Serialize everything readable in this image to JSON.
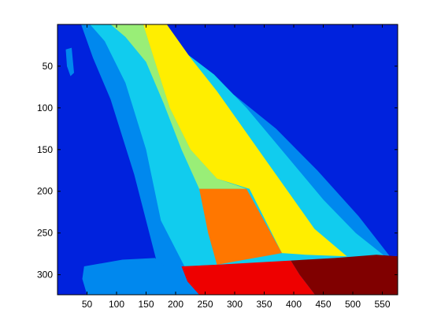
{
  "chart_data": {
    "type": "heatmap",
    "title": "",
    "xlabel": "",
    "ylabel": "",
    "xlim": [
      0,
      576
    ],
    "ylim": [
      0,
      324
    ],
    "y_reversed": true,
    "grid": false,
    "x_ticks": [
      50,
      100,
      150,
      200,
      250,
      300,
      350,
      400,
      450,
      500,
      550
    ],
    "y_ticks": [
      50,
      100,
      150,
      200,
      250,
      300
    ],
    "colormap": "jet",
    "colors": {
      "dark_blue": "#0022dd",
      "medium_blue": "#0088ee",
      "cyan": "#11ccee",
      "light_green": "#99ee77",
      "yellow": "#ffee00",
      "orange": "#ff7700",
      "red": "#ee0000",
      "dark_red": "#800000"
    },
    "regions": [
      {
        "name": "background",
        "color": "dark_blue",
        "polygon": [
          [
            0,
            0
          ],
          [
            576,
            0
          ],
          [
            576,
            324
          ],
          [
            0,
            324
          ]
        ]
      },
      {
        "name": "medium-blue-band",
        "color": "medium_blue",
        "polygon": [
          [
            40,
            0
          ],
          [
            110,
            0
          ],
          [
            150,
            40
          ],
          [
            230,
            55
          ],
          [
            300,
            85
          ],
          [
            370,
            125
          ],
          [
            440,
            175
          ],
          [
            510,
            230
          ],
          [
            576,
            290
          ],
          [
            576,
            324
          ],
          [
            180,
            324
          ],
          [
            170,
            290
          ],
          [
            130,
            180
          ],
          [
            90,
            90
          ],
          [
            60,
            40
          ]
        ]
      },
      {
        "name": "left-shoreline",
        "color": "medium_blue",
        "polygon": [
          [
            45,
            290
          ],
          [
            110,
            282
          ],
          [
            165,
            280
          ],
          [
            182,
            290
          ],
          [
            190,
            324
          ],
          [
            50,
            324
          ],
          [
            42,
            305
          ]
        ]
      },
      {
        "name": "left-inlet",
        "color": "medium_blue",
        "polygon": [
          [
            14,
            30
          ],
          [
            24,
            28
          ],
          [
            28,
            58
          ],
          [
            22,
            62
          ],
          [
            16,
            50
          ]
        ]
      },
      {
        "name": "cyan-band",
        "color": "cyan",
        "polygon": [
          [
            55,
            0
          ],
          [
            165,
            0
          ],
          [
            200,
            25
          ],
          [
            265,
            60
          ],
          [
            320,
            100
          ],
          [
            385,
            155
          ],
          [
            450,
            210
          ],
          [
            505,
            250
          ],
          [
            576,
            290
          ],
          [
            576,
            294
          ],
          [
            410,
            284
          ],
          [
            270,
            288
          ],
          [
            215,
            290
          ],
          [
            175,
            235
          ],
          [
            150,
            150
          ],
          [
            115,
            70
          ],
          [
            80,
            20
          ]
        ]
      },
      {
        "name": "light-green-band",
        "color": "light_green",
        "polygon": [
          [
            90,
            0
          ],
          [
            145,
            0
          ],
          [
            165,
            45
          ],
          [
            190,
            100
          ],
          [
            225,
            150
          ],
          [
            270,
            185
          ],
          [
            320,
            197
          ],
          [
            240,
            197
          ],
          [
            210,
            150
          ],
          [
            180,
            95
          ],
          [
            150,
            45
          ],
          [
            115,
            15
          ]
        ]
      },
      {
        "name": "yellow-band",
        "color": "yellow",
        "polygon": [
          [
            145,
            0
          ],
          [
            185,
            0
          ],
          [
            225,
            40
          ],
          [
            270,
            80
          ],
          [
            310,
            120
          ],
          [
            355,
            165
          ],
          [
            395,
            205
          ],
          [
            435,
            245
          ],
          [
            490,
            278
          ],
          [
            490,
            278
          ],
          [
            420,
            276
          ],
          [
            380,
            274
          ],
          [
            325,
            197
          ],
          [
            270,
            185
          ],
          [
            225,
            150
          ],
          [
            190,
            100
          ],
          [
            165,
            45
          ]
        ]
      },
      {
        "name": "orange-region",
        "color": "orange",
        "polygon": [
          [
            240,
            197
          ],
          [
            320,
            197
          ],
          [
            380,
            274
          ],
          [
            270,
            288
          ],
          [
            255,
            250
          ]
        ]
      },
      {
        "name": "red-region",
        "color": "red",
        "polygon": [
          [
            210,
            290
          ],
          [
            270,
            288
          ],
          [
            395,
            283
          ],
          [
            410,
            300
          ],
          [
            436,
            324
          ],
          [
            240,
            324
          ],
          [
            220,
            308
          ]
        ]
      },
      {
        "name": "dark-red-region",
        "color": "dark_red",
        "polygon": [
          [
            395,
            283
          ],
          [
            470,
            280
          ],
          [
            540,
            276
          ],
          [
            576,
            278
          ],
          [
            576,
            324
          ],
          [
            436,
            324
          ],
          [
            410,
            300
          ]
        ]
      }
    ]
  }
}
